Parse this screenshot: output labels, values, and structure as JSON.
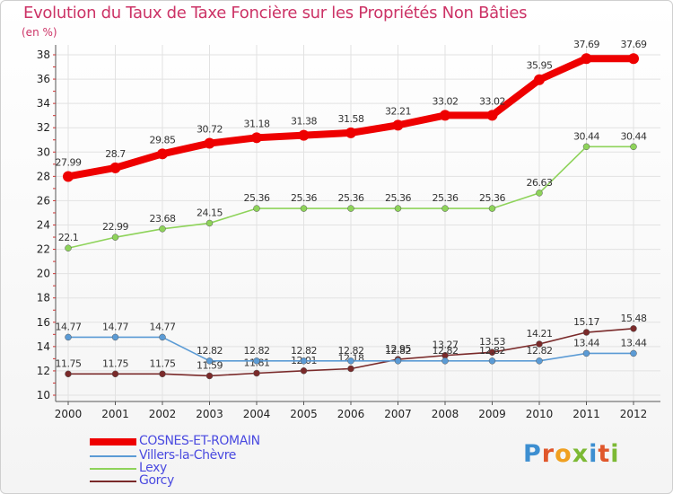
{
  "title": "Evolution du Taux de Taxe Foncière sur les Propriétés Non Bâties",
  "unit_label": "(en %)",
  "logo": {
    "text": "Proxiti",
    "colors": [
      "#3d8fd1",
      "#e0572b",
      "#f0a020",
      "#7cb934",
      "#3d8fd1",
      "#e0572b",
      "#7cb934"
    ]
  },
  "chart_data": {
    "type": "line",
    "title": "Evolution du Taux de Taxe Foncière sur les Propriétés Non Bâties",
    "ylabel": "(en %)",
    "xlabel": "",
    "ylim": [
      10,
      38
    ],
    "yticks": [
      "10",
      "12",
      "14",
      "16",
      "18",
      "20",
      "22",
      "24",
      "26",
      "28",
      "30",
      "32",
      "34",
      "36",
      "38"
    ],
    "x": [
      "2000",
      "2001",
      "2002",
      "2003",
      "2004",
      "2005",
      "2006",
      "2007",
      "2008",
      "2009",
      "2010",
      "2011",
      "2012"
    ],
    "grid": true,
    "series": [
      {
        "name": "COSNES-ET-ROMAIN",
        "color": "#ee0000",
        "values": [
          27.99,
          28.7,
          29.85,
          30.72,
          31.18,
          31.38,
          31.58,
          32.21,
          33.02,
          33.02,
          35.95,
          37.69,
          37.69
        ],
        "labels": [
          "27.99",
          "28.7",
          "29.85",
          "30.72",
          "31.18",
          "31.38",
          "31.58",
          "32.21",
          "33.02",
          "33.02",
          "35.95",
          "37.69",
          "37.69"
        ]
      },
      {
        "name": "Villers-la-Chèvre",
        "color": "#5b9bd5",
        "values": [
          14.77,
          14.77,
          14.77,
          12.82,
          12.82,
          12.82,
          12.82,
          12.82,
          12.82,
          12.82,
          12.82,
          13.44,
          13.44
        ],
        "labels": [
          "14.77",
          "14.77",
          "14.77",
          "12.82",
          "12.82",
          "12.82",
          "12.82",
          "12.82",
          "12.82",
          "12.82",
          "12.82",
          "13.44",
          "13.44"
        ]
      },
      {
        "name": "Lexy",
        "color": "#8ed35a",
        "values": [
          22.1,
          22.99,
          23.68,
          24.15,
          25.36,
          25.36,
          25.36,
          25.36,
          25.36,
          25.36,
          26.63,
          30.44,
          30.44
        ],
        "labels": [
          "22.1",
          "22.99",
          "23.68",
          "24.15",
          "25.36",
          "25.36",
          "25.36",
          "25.36",
          "25.36",
          "25.36",
          "26.63",
          "30.44",
          "30.44"
        ]
      },
      {
        "name": "Gorcy",
        "color": "#7a2a2a",
        "values": [
          11.75,
          11.75,
          11.75,
          11.59,
          11.81,
          12.01,
          12.18,
          12.95,
          13.27,
          13.53,
          14.21,
          15.17,
          15.48
        ],
        "labels": [
          "11.75",
          "11.75",
          "11.75",
          "11.59",
          "11.81",
          "12.01",
          "12.18",
          "12.95",
          "13.27",
          "13.53",
          "14.21",
          "15.17",
          "15.48"
        ]
      }
    ]
  }
}
